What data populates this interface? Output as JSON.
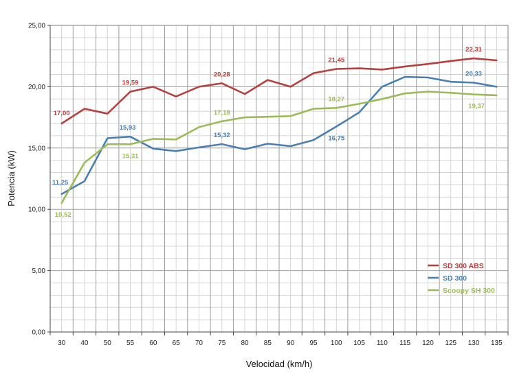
{
  "chart_data": {
    "type": "line",
    "title": "",
    "xlabel": "Velocidad (km/h)",
    "ylabel": "Potencia (kW)",
    "ylim": [
      0,
      25
    ],
    "y_ticks": [
      "0,00",
      "5,00",
      "10,00",
      "15,00",
      "20,00",
      "25,00"
    ],
    "categories": [
      "30",
      "40",
      "50",
      "55",
      "60",
      "65",
      "70",
      "75",
      "80",
      "85",
      "90",
      "95",
      "100",
      "105",
      "110",
      "115",
      "120",
      "125",
      "130",
      "135"
    ],
    "grid": true,
    "legend_position": "bottom-right",
    "series": [
      {
        "name": "SD 300 ABS",
        "color": "#b5403f",
        "values": [
          17.0,
          18.2,
          17.8,
          19.59,
          20.0,
          19.2,
          20.0,
          20.28,
          19.4,
          20.55,
          20.0,
          21.1,
          21.45,
          21.5,
          21.4,
          21.65,
          21.85,
          22.1,
          22.31,
          22.15
        ],
        "labels": [
          {
            "i": 0,
            "text": "17,00"
          },
          {
            "i": 3,
            "text": "19,59"
          },
          {
            "i": 7,
            "text": "20,28"
          },
          {
            "i": 12,
            "text": "21,45"
          },
          {
            "i": 18,
            "text": "22,31"
          }
        ]
      },
      {
        "name": "SD 300",
        "color": "#4a7fb0",
        "values": [
          11.25,
          12.3,
          15.8,
          15.93,
          14.95,
          14.75,
          15.05,
          15.32,
          14.9,
          15.35,
          15.15,
          15.65,
          16.75,
          17.9,
          20.0,
          20.8,
          20.75,
          20.4,
          20.33,
          20.0
        ],
        "labels": [
          {
            "i": 0,
            "text": "11,25"
          },
          {
            "i": 3,
            "text": "15,93"
          },
          {
            "i": 7,
            "text": "15,32"
          },
          {
            "i": 12,
            "text": "16,75"
          },
          {
            "i": 18,
            "text": "20,33"
          }
        ]
      },
      {
        "name": "Scoopy SH 300",
        "color": "#9bbb59",
        "values": [
          10.52,
          13.8,
          15.31,
          15.31,
          15.75,
          15.7,
          16.7,
          17.18,
          17.5,
          17.55,
          17.6,
          18.2,
          18.27,
          18.6,
          19.0,
          19.45,
          19.6,
          19.5,
          19.37,
          19.3
        ],
        "labels": [
          {
            "i": 0,
            "text": "10,52"
          },
          {
            "i": 3,
            "text": "15,31"
          },
          {
            "i": 7,
            "text": "17,18"
          },
          {
            "i": 12,
            "text": "18,27"
          },
          {
            "i": 18,
            "text": "19,37"
          }
        ]
      }
    ]
  }
}
